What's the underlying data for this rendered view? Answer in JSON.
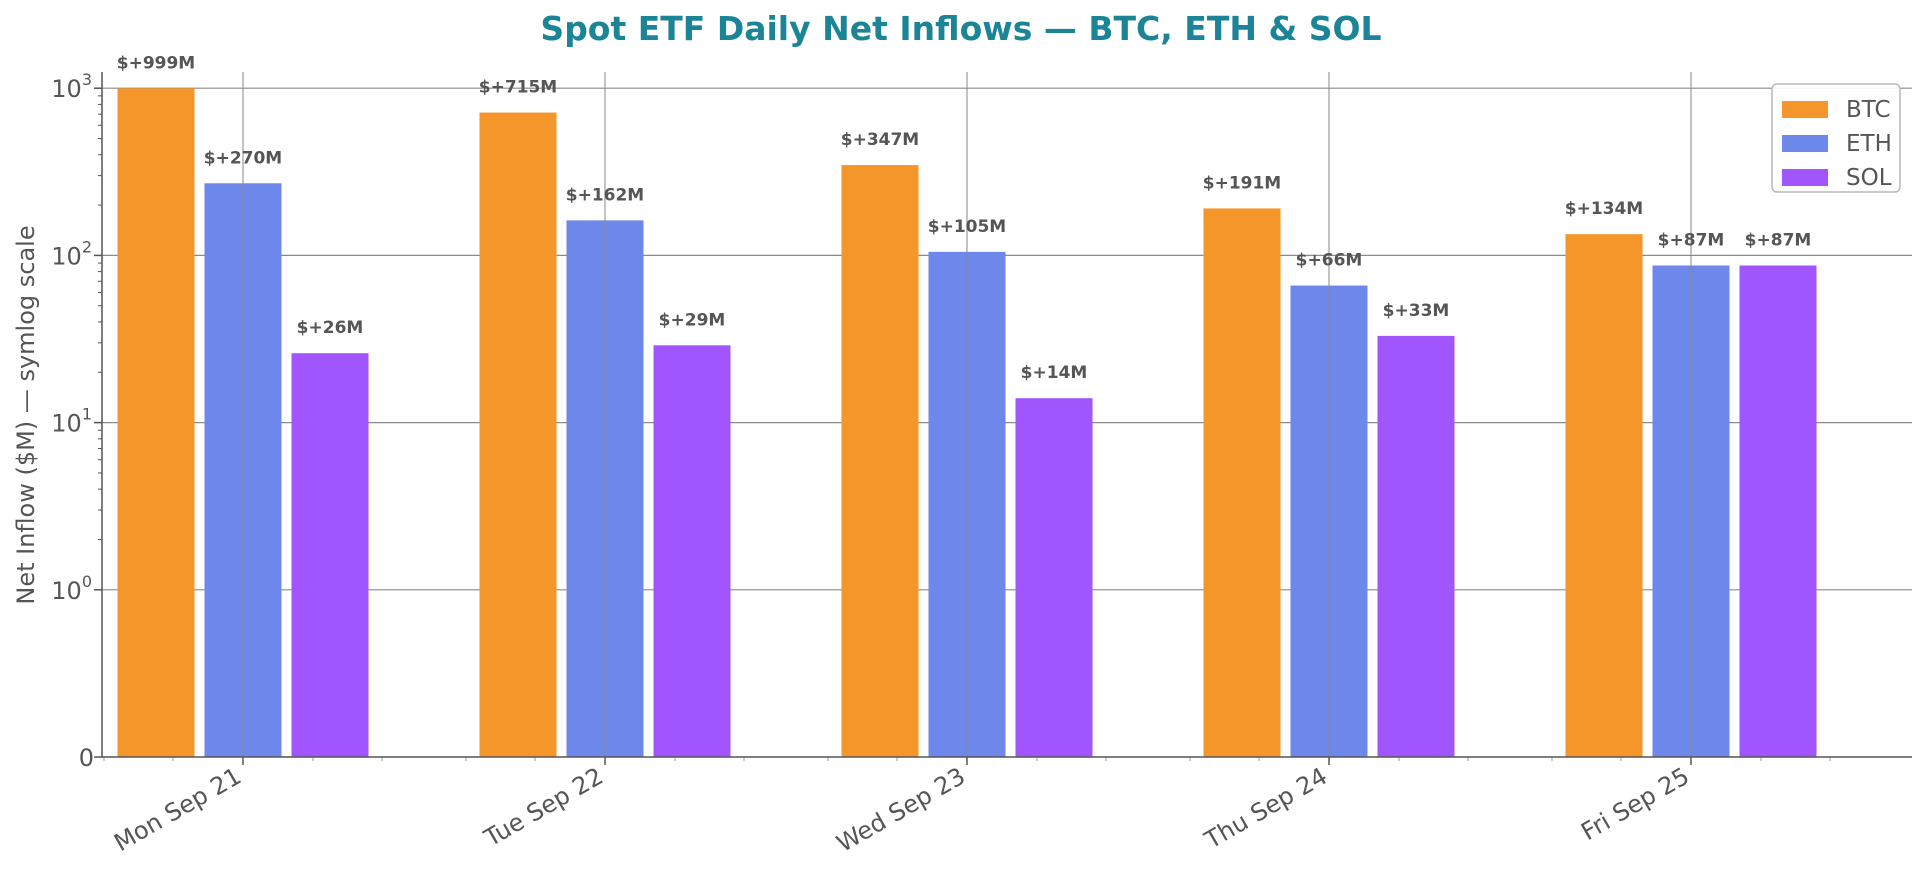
{
  "chart_data": {
    "type": "bar",
    "title": "Spot ETF Daily Net Inflows — BTC, ETH & SOL",
    "xlabel": "",
    "ylabel": "Net Inflow ($M) — symlog scale",
    "yscale": "symlog",
    "ylim": [
      0,
      1250
    ],
    "yticks": [
      {
        "value": 0,
        "base": "0",
        "exp": ""
      },
      {
        "value": 1,
        "base": "10",
        "exp": "0"
      },
      {
        "value": 10,
        "base": "10",
        "exp": "1"
      },
      {
        "value": 100,
        "base": "10",
        "exp": "2"
      },
      {
        "value": 1000,
        "base": "10",
        "exp": "3"
      }
    ],
    "categories": [
      "Mon Sep 21",
      "Tue Sep 22",
      "Wed Sep 23",
      "Thu Sep 24",
      "Fri Sep 25"
    ],
    "series": [
      {
        "name": "BTC",
        "color": "#f5962a",
        "values": [
          999,
          715,
          347,
          191,
          134
        ],
        "labels": [
          "$+999M",
          "$+715M",
          "$+347M",
          "$+191M",
          "$+134M"
        ]
      },
      {
        "name": "ETH",
        "color": "#6e87eb",
        "values": [
          270,
          162,
          105,
          66,
          87
        ],
        "labels": [
          "$+270M",
          "$+162M",
          "$+105M",
          "$+66M",
          "$+87M"
        ]
      },
      {
        "name": "SOL",
        "color": "#a155fd",
        "values": [
          26,
          29,
          14,
          33,
          87
        ],
        "labels": [
          "$+26M",
          "$+29M",
          "$+14M",
          "$+33M",
          "$+87M"
        ]
      }
    ],
    "grid": true,
    "legend": "top-right",
    "title_color": "#1b8597"
  }
}
